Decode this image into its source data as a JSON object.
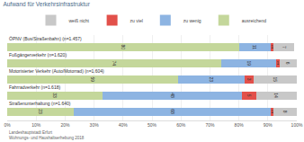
{
  "chart_data": {
    "type": "bar",
    "orientation": "horizontal",
    "stacked": true,
    "title": "Aufwand für Verkehrsinfrastruktur",
    "categories": [
      "ÖPNV (Bus/Straßenbahn) (n=1.457)",
      "Fußgängerverkehr (n=1.620)",
      "Motorisierter Verkehr (Auto/Motorrad) (n=1.604)",
      "Fahrradverkehr (n=1.618)",
      "Straßenunterhaltung (n=1.640)"
    ],
    "series": [
      {
        "name": "ausreichend",
        "color": "#c4d79b",
        "values": [
          80,
          74,
          59,
          33,
          23
        ]
      },
      {
        "name": "zu wenig",
        "color": "#8db4e2",
        "values": [
          11,
          19,
          23,
          48,
          68
        ]
      },
      {
        "name": "zu viel",
        "color": "#e2504a",
        "values": [
          1,
          1,
          3,
          5,
          1
        ]
      },
      {
        "name": "weiß nicht",
        "color": "#c8c8c8",
        "values": [
          7,
          6,
          15,
          14,
          8
        ]
      }
    ],
    "xlim": [
      0,
      100
    ],
    "xticks": [
      {
        "value": 0,
        "label": "0%"
      },
      {
        "value": 10,
        "label": "10%"
      },
      {
        "value": 20,
        "label": "20%"
      },
      {
        "value": 30,
        "label": "30%"
      },
      {
        "value": 40,
        "label": "40%"
      },
      {
        "value": 50,
        "label": "50%"
      },
      {
        "value": 60,
        "label": "60%"
      },
      {
        "value": 70,
        "label": "70%"
      },
      {
        "value": 80,
        "label": "80%"
      },
      {
        "value": 90,
        "label": "90%"
      },
      {
        "value": 100,
        "label": "100%"
      }
    ],
    "grid": true,
    "legend": "top",
    "data_labels": true,
    "tick_labels": "x",
    "annotations": [
      "Landeshauptstadt Erfurt",
      "Wohnungs- und Haushaltserhebung 2018"
    ]
  }
}
